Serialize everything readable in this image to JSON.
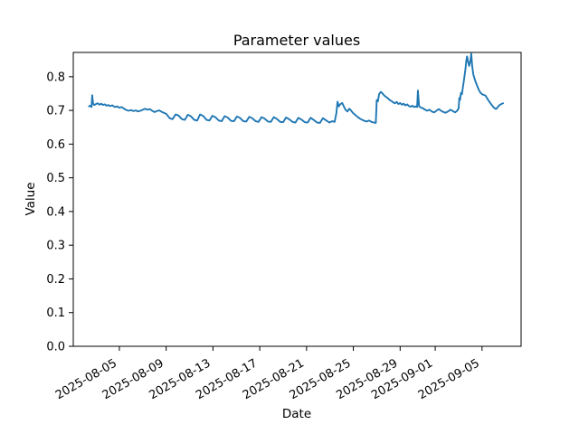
{
  "chart_data": {
    "type": "line",
    "title": "Parameter values",
    "xlabel": "Date",
    "ylabel": "Value",
    "grid": false,
    "legend_position": "none",
    "background_color": "#ffffff",
    "axis_color": "#000000",
    "x_unit": "days since 2025-08-01",
    "xlim": [
      0.06,
      38.34
    ],
    "ylim": [
      0.0,
      0.872
    ],
    "y_ticks": [
      {
        "value": 0.0,
        "label": "0.0"
      },
      {
        "value": 0.1,
        "label": "0.1"
      },
      {
        "value": 0.2,
        "label": "0.2"
      },
      {
        "value": 0.3,
        "label": "0.3"
      },
      {
        "value": 0.4,
        "label": "0.4"
      },
      {
        "value": 0.5,
        "label": "0.5"
      },
      {
        "value": 0.6,
        "label": "0.6"
      },
      {
        "value": 0.7,
        "label": "0.7"
      },
      {
        "value": 0.8,
        "label": "0.8"
      }
    ],
    "x_ticks": [
      {
        "day": 4,
        "label": "2025-08-05"
      },
      {
        "day": 8,
        "label": "2025-08-09"
      },
      {
        "day": 12,
        "label": "2025-08-13"
      },
      {
        "day": 16,
        "label": "2025-08-17"
      },
      {
        "day": 20,
        "label": "2025-08-21"
      },
      {
        "day": 24,
        "label": "2025-08-25"
      },
      {
        "day": 28,
        "label": "2025-08-29"
      },
      {
        "day": 31,
        "label": "2025-09-01"
      },
      {
        "day": 35,
        "label": "2025-09-05"
      }
    ],
    "x_tick_rotation_deg": 30,
    "series": [
      {
        "name": "parameter-values",
        "color": "#1f77b4",
        "line_width": 1.9,
        "points": [
          [
            1.4,
            0.712
          ],
          [
            1.52,
            0.714
          ],
          [
            1.62,
            0.71
          ],
          [
            1.68,
            0.745
          ],
          [
            1.75,
            0.72
          ],
          [
            1.85,
            0.716
          ],
          [
            2.0,
            0.719
          ],
          [
            2.15,
            0.721
          ],
          [
            2.3,
            0.717
          ],
          [
            2.45,
            0.72
          ],
          [
            2.6,
            0.716
          ],
          [
            2.75,
            0.718
          ],
          [
            2.9,
            0.714
          ],
          [
            3.05,
            0.716
          ],
          [
            3.2,
            0.713
          ],
          [
            3.4,
            0.715
          ],
          [
            3.6,
            0.71
          ],
          [
            3.8,
            0.712
          ],
          [
            4.0,
            0.708
          ],
          [
            4.2,
            0.71
          ],
          [
            4.4,
            0.705
          ],
          [
            4.6,
            0.701
          ],
          [
            4.8,
            0.699
          ],
          [
            5.0,
            0.701
          ],
          [
            5.2,
            0.698
          ],
          [
            5.4,
            0.7
          ],
          [
            5.6,
            0.697
          ],
          [
            5.8,
            0.699
          ],
          [
            6.0,
            0.702
          ],
          [
            6.2,
            0.705
          ],
          [
            6.4,
            0.702
          ],
          [
            6.6,
            0.704
          ],
          [
            6.8,
            0.699
          ],
          [
            7.0,
            0.695
          ],
          [
            7.2,
            0.698
          ],
          [
            7.4,
            0.7
          ],
          [
            7.6,
            0.696
          ],
          [
            7.8,
            0.693
          ],
          [
            8.0,
            0.69
          ],
          [
            8.3,
            0.677
          ],
          [
            8.55,
            0.674
          ],
          [
            8.8,
            0.688
          ],
          [
            9.05,
            0.685
          ],
          [
            9.35,
            0.674
          ],
          [
            9.6,
            0.672
          ],
          [
            9.85,
            0.687
          ],
          [
            10.1,
            0.683
          ],
          [
            10.4,
            0.672
          ],
          [
            10.65,
            0.67
          ],
          [
            10.9,
            0.688
          ],
          [
            11.15,
            0.684
          ],
          [
            11.45,
            0.672
          ],
          [
            11.7,
            0.67
          ],
          [
            11.95,
            0.684
          ],
          [
            12.2,
            0.68
          ],
          [
            12.5,
            0.67
          ],
          [
            12.75,
            0.668
          ],
          [
            13.0,
            0.683
          ],
          [
            13.25,
            0.679
          ],
          [
            13.55,
            0.669
          ],
          [
            13.8,
            0.668
          ],
          [
            14.05,
            0.682
          ],
          [
            14.3,
            0.678
          ],
          [
            14.6,
            0.668
          ],
          [
            14.85,
            0.667
          ],
          [
            15.1,
            0.681
          ],
          [
            15.35,
            0.677
          ],
          [
            15.65,
            0.668
          ],
          [
            15.9,
            0.666
          ],
          [
            16.15,
            0.68
          ],
          [
            16.4,
            0.676
          ],
          [
            16.7,
            0.667
          ],
          [
            16.95,
            0.666
          ],
          [
            17.2,
            0.68
          ],
          [
            17.45,
            0.675
          ],
          [
            17.75,
            0.666
          ],
          [
            18.0,
            0.665
          ],
          [
            18.25,
            0.679
          ],
          [
            18.5,
            0.674
          ],
          [
            18.8,
            0.666
          ],
          [
            19.05,
            0.664
          ],
          [
            19.3,
            0.678
          ],
          [
            19.55,
            0.673
          ],
          [
            19.85,
            0.665
          ],
          [
            20.1,
            0.664
          ],
          [
            20.35,
            0.678
          ],
          [
            20.6,
            0.672
          ],
          [
            20.9,
            0.664
          ],
          [
            21.15,
            0.663
          ],
          [
            21.4,
            0.677
          ],
          [
            21.65,
            0.671
          ],
          [
            21.95,
            0.664
          ],
          [
            22.2,
            0.668
          ],
          [
            22.4,
            0.666
          ],
          [
            22.55,
            0.692
          ],
          [
            22.65,
            0.726
          ],
          [
            22.75,
            0.712
          ],
          [
            22.9,
            0.719
          ],
          [
            23.05,
            0.722
          ],
          [
            23.2,
            0.711
          ],
          [
            23.35,
            0.701
          ],
          [
            23.5,
            0.697
          ],
          [
            23.65,
            0.705
          ],
          [
            23.8,
            0.7
          ],
          [
            23.95,
            0.693
          ],
          [
            24.15,
            0.687
          ],
          [
            24.35,
            0.681
          ],
          [
            24.55,
            0.676
          ],
          [
            24.75,
            0.672
          ],
          [
            24.95,
            0.669
          ],
          [
            25.15,
            0.667
          ],
          [
            25.35,
            0.67
          ],
          [
            25.55,
            0.666
          ],
          [
            25.75,
            0.664
          ],
          [
            25.92,
            0.663
          ],
          [
            26.0,
            0.731
          ],
          [
            26.1,
            0.727
          ],
          [
            26.2,
            0.748
          ],
          [
            26.35,
            0.755
          ],
          [
            26.5,
            0.75
          ],
          [
            26.65,
            0.744
          ],
          [
            26.8,
            0.74
          ],
          [
            26.95,
            0.736
          ],
          [
            27.1,
            0.731
          ],
          [
            27.25,
            0.728
          ],
          [
            27.4,
            0.724
          ],
          [
            27.55,
            0.721
          ],
          [
            27.7,
            0.725
          ],
          [
            27.85,
            0.719
          ],
          [
            28.0,
            0.722
          ],
          [
            28.15,
            0.717
          ],
          [
            28.3,
            0.72
          ],
          [
            28.45,
            0.715
          ],
          [
            28.6,
            0.718
          ],
          [
            28.75,
            0.713
          ],
          [
            28.9,
            0.711
          ],
          [
            29.05,
            0.714
          ],
          [
            29.2,
            0.71
          ],
          [
            29.35,
            0.712
          ],
          [
            29.45,
            0.71
          ],
          [
            29.52,
            0.759
          ],
          [
            29.62,
            0.712
          ],
          [
            29.75,
            0.709
          ],
          [
            29.9,
            0.707
          ],
          [
            30.1,
            0.703
          ],
          [
            30.3,
            0.699
          ],
          [
            30.5,
            0.702
          ],
          [
            30.7,
            0.697
          ],
          [
            30.9,
            0.694
          ],
          [
            31.1,
            0.699
          ],
          [
            31.3,
            0.704
          ],
          [
            31.5,
            0.699
          ],
          [
            31.7,
            0.695
          ],
          [
            31.9,
            0.693
          ],
          [
            32.1,
            0.697
          ],
          [
            32.3,
            0.702
          ],
          [
            32.5,
            0.698
          ],
          [
            32.7,
            0.694
          ],
          [
            32.9,
            0.7
          ],
          [
            33.0,
            0.706
          ],
          [
            33.06,
            0.737
          ],
          [
            33.12,
            0.731
          ],
          [
            33.2,
            0.752
          ],
          [
            33.28,
            0.748
          ],
          [
            33.38,
            0.772
          ],
          [
            33.48,
            0.796
          ],
          [
            33.58,
            0.822
          ],
          [
            33.66,
            0.848
          ],
          [
            33.72,
            0.86
          ],
          [
            33.8,
            0.846
          ],
          [
            33.9,
            0.832
          ],
          [
            34.0,
            0.846
          ],
          [
            34.08,
            0.868
          ],
          [
            34.16,
            0.831
          ],
          [
            34.26,
            0.806
          ],
          [
            34.4,
            0.79
          ],
          [
            34.55,
            0.776
          ],
          [
            34.7,
            0.763
          ],
          [
            34.85,
            0.753
          ],
          [
            35.0,
            0.748
          ],
          [
            35.15,
            0.746
          ],
          [
            35.3,
            0.744
          ],
          [
            35.45,
            0.735
          ],
          [
            35.6,
            0.727
          ],
          [
            35.75,
            0.72
          ],
          [
            35.9,
            0.713
          ],
          [
            36.05,
            0.707
          ],
          [
            36.2,
            0.704
          ],
          [
            36.35,
            0.71
          ],
          [
            36.5,
            0.716
          ],
          [
            36.65,
            0.719
          ],
          [
            36.8,
            0.721
          ]
        ]
      }
    ]
  }
}
